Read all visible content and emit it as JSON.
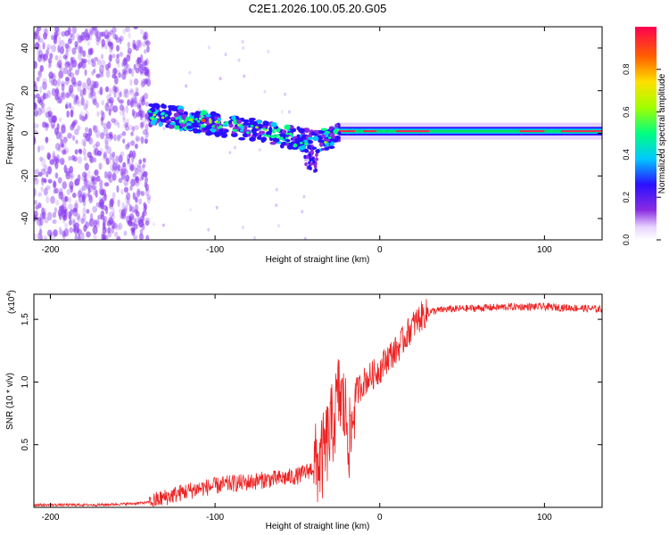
{
  "title": "C2E1.2026.100.05.20.G05",
  "colors": {
    "snr_line": "#ee2222",
    "axis": "#000000",
    "scatter_noise": "#8a3cf0",
    "background": "#ffffff"
  },
  "chart_data": [
    {
      "type": "heatmap",
      "title": "C2E1.2026.100.05.20.G05",
      "xlabel": "Height of straight line (km)",
      "ylabel": "Frequency (Hz)",
      "xlim": [
        -210,
        135
      ],
      "ylim": [
        -50,
        50
      ],
      "x_ticks": [
        -200,
        -100,
        0,
        100
      ],
      "y_ticks": [
        -40,
        -20,
        0,
        20,
        40
      ],
      "x_tick_labels": [
        "-200",
        "-100",
        "0",
        "100"
      ],
      "y_tick_labels": [
        "-40",
        "-20",
        "0",
        "20",
        "40"
      ],
      "colorbar": {
        "label": "Normalized spectral amplitude",
        "range": [
          0.0,
          1.0
        ],
        "ticks": [
          0.0,
          0.2,
          0.4,
          0.6,
          0.8
        ],
        "tick_labels": [
          "0.0",
          "0.2",
          "0.4",
          "0.6",
          "0.8"
        ]
      },
      "ridge": [
        {
          "x": -140,
          "y": 9
        },
        {
          "x": -120,
          "y": 7
        },
        {
          "x": -100,
          "y": 4
        },
        {
          "x": -80,
          "y": 2
        },
        {
          "x": -60,
          "y": -1
        },
        {
          "x": -40,
          "y": -4
        },
        {
          "x": -30,
          "y": -2
        },
        {
          "x": -20,
          "y": 0
        },
        {
          "x": 0,
          "y": 1
        },
        {
          "x": 50,
          "y": 1
        },
        {
          "x": 100,
          "y": 1
        },
        {
          "x": 135,
          "y": 1
        }
      ],
      "noise_region_x": [
        -210,
        -140
      ],
      "strong_band_x": [
        -25,
        135
      ]
    },
    {
      "type": "line",
      "xlabel": "Height of straight line (km)",
      "ylabel": "SNR (10 * v/v)",
      "y_multiplier": "(x10",
      "y_multiplier_exponent": "4",
      "xlim": [
        -210,
        135
      ],
      "ylim": [
        0,
        1.7
      ],
      "x_ticks": [
        -200,
        -100,
        0,
        100
      ],
      "y_ticks": [
        0.5,
        1.0,
        1.5
      ],
      "x_tick_labels": [
        "-200",
        "-100",
        "0",
        "100"
      ],
      "y_tick_labels": [
        "0.5",
        "1.0",
        "1.5"
      ],
      "series": [
        {
          "name": "SNR",
          "x": [
            -210,
            -190,
            -170,
            -150,
            -140,
            -130,
            -120,
            -110,
            -100,
            -90,
            -80,
            -70,
            -60,
            -50,
            -45,
            -40,
            -35,
            -30,
            -27,
            -25,
            -23,
            -20,
            -18,
            -15,
            -10,
            -5,
            0,
            5,
            10,
            15,
            20,
            25,
            30,
            40,
            60,
            80,
            100,
            120,
            135
          ],
          "values": [
            0.02,
            0.02,
            0.02,
            0.03,
            0.04,
            0.08,
            0.12,
            0.15,
            0.17,
            0.19,
            0.2,
            0.22,
            0.23,
            0.25,
            0.28,
            0.32,
            0.38,
            0.6,
            0.75,
            0.9,
            0.85,
            0.7,
            0.5,
            0.9,
            1.0,
            1.05,
            1.1,
            1.2,
            1.25,
            1.35,
            1.45,
            1.52,
            1.56,
            1.58,
            1.59,
            1.6,
            1.6,
            1.59,
            1.58
          ]
        }
      ]
    }
  ]
}
